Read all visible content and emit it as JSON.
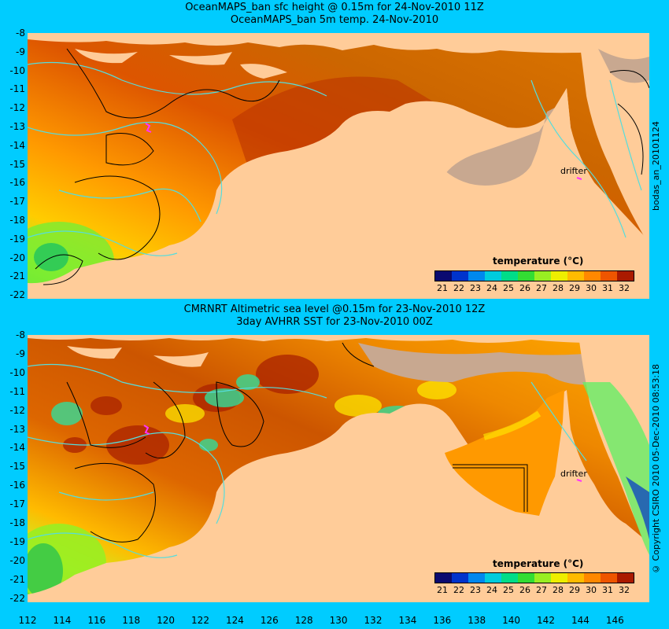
{
  "panels": [
    {
      "title1": "OceanMAPS_ban sfc height @ 0.15m for 24-Nov-2010 11Z",
      "title2": "OceanMAPS_ban 5m temp. 24-Nov-2010",
      "yticks": [
        "-8",
        "-9",
        "-10",
        "-11",
        "-12",
        "-13",
        "-14",
        "-15",
        "-16",
        "-17",
        "-18",
        "-19",
        "-20",
        "-21",
        "-22"
      ],
      "colorbar_title": "temperature (°C)",
      "colorbar_labels": [
        "21",
        "22",
        "23",
        "24",
        "25",
        "26",
        "27",
        "28",
        "29",
        "30",
        "31",
        "32"
      ],
      "drifter_label": "drifter",
      "side_text": "bodas_an_20101124"
    },
    {
      "title1": "CMRNRT Altimetric sea level  @0.15m  for 23-Nov-2010 12Z",
      "title2": "3day AVHRR SST for 23-Nov-2010 00Z",
      "yticks": [
        "-8",
        "-9",
        "-10",
        "-11",
        "-12",
        "-13",
        "-14",
        "-15",
        "-16",
        "-17",
        "-18",
        "-19",
        "-20",
        "-21",
        "-22"
      ],
      "colorbar_title": "temperature (°C)",
      "colorbar_labels": [
        "21",
        "22",
        "23",
        "24",
        "25",
        "26",
        "27",
        "28",
        "29",
        "30",
        "31",
        "32"
      ],
      "drifter_label": "drifter",
      "side_text": "© Copyright CSIRO 2010   05-Dec-2010 08:53:18"
    }
  ],
  "xticks": [
    "112",
    "114",
    "116",
    "118",
    "120",
    "122",
    "124",
    "126",
    "128",
    "130",
    "132",
    "134",
    "136",
    "138",
    "140",
    "142",
    "144",
    "146"
  ],
  "colors": {
    "background": "#00ccff",
    "land": "#ffcc99",
    "missing": "#c8a890",
    "contour_cyan": "#55dddd",
    "drifter": "#ff33ff"
  },
  "colorbar_colors": [
    "#0a0a70",
    "#0033cc",
    "#0088ee",
    "#00ccdd",
    "#00dd88",
    "#33dd33",
    "#99ee22",
    "#eeee00",
    "#ffbb00",
    "#ff8800",
    "#ee5500",
    "#aa1a00"
  ]
}
